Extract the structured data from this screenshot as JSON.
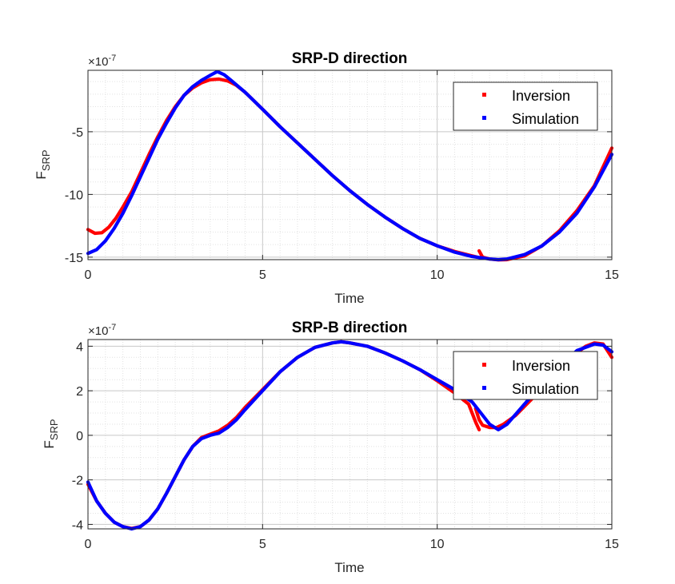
{
  "chart_data": [
    {
      "type": "line",
      "title": "SRP-D direction",
      "xlabel": "Time",
      "ylabel_main": "F",
      "ylabel_sub": "SRP",
      "exponent_base": "×10",
      "exponent_power": "-7",
      "xlim": [
        0,
        15
      ],
      "ylim": [
        -15.2,
        -0.1
      ],
      "xticks": [
        0,
        5,
        10,
        15
      ],
      "yticks": [
        -15,
        -10,
        -5
      ],
      "grid": "major and minor, dotted",
      "legend_position": "top-right",
      "series": [
        {
          "name": "Inversion",
          "color": "#ff0000",
          "segments": [
            [
              [
                0,
                -12.8
              ],
              [
                0.2,
                -13.1
              ],
              [
                0.4,
                -13.05
              ],
              [
                0.6,
                -12.6
              ],
              [
                0.8,
                -11.9
              ],
              [
                1,
                -11.0
              ],
              [
                1.25,
                -9.8
              ],
              [
                1.5,
                -8.3
              ],
              [
                1.75,
                -6.8
              ],
              [
                2,
                -5.4
              ],
              [
                2.25,
                -4.1
              ],
              [
                2.5,
                -3.0
              ],
              [
                2.75,
                -2.1
              ],
              [
                3,
                -1.5
              ],
              [
                3.25,
                -1.1
              ],
              [
                3.5,
                -0.85
              ],
              [
                3.75,
                -0.8
              ],
              [
                4,
                -0.95
              ],
              [
                4.25,
                -1.3
              ],
              [
                4.5,
                -1.85
              ],
              [
                5,
                -3.2
              ],
              [
                5.5,
                -4.6
              ],
              [
                6,
                -5.9
              ],
              [
                6.5,
                -7.2
              ],
              [
                7,
                -8.5
              ],
              [
                7.5,
                -9.7
              ],
              [
                8,
                -10.8
              ],
              [
                8.5,
                -11.8
              ],
              [
                9,
                -12.7
              ],
              [
                9.5,
                -13.5
              ],
              [
                10,
                -14.1
              ],
              [
                10.5,
                -14.55
              ],
              [
                11,
                -14.9
              ],
              [
                11.15,
                -15.0
              ]
            ],
            [
              [
                11.2,
                -14.5
              ],
              [
                11.3,
                -15.0
              ],
              [
                11.5,
                -15.15
              ],
              [
                11.75,
                -15.22
              ],
              [
                12,
                -15.2
              ],
              [
                12.5,
                -14.9
              ],
              [
                13,
                -14.1
              ],
              [
                13.5,
                -12.9
              ],
              [
                14,
                -11.3
              ],
              [
                14.5,
                -9.3
              ],
              [
                15,
                -6.3
              ]
            ]
          ]
        },
        {
          "name": "Simulation",
          "color": "#0000ff",
          "segments": [
            [
              [
                0,
                -14.7
              ],
              [
                0.25,
                -14.4
              ],
              [
                0.5,
                -13.7
              ],
              [
                0.75,
                -12.7
              ],
              [
                1,
                -11.5
              ],
              [
                1.25,
                -10.1
              ],
              [
                1.5,
                -8.6
              ],
              [
                1.75,
                -7.1
              ],
              [
                2,
                -5.6
              ],
              [
                2.25,
                -4.3
              ],
              [
                2.5,
                -3.1
              ],
              [
                2.75,
                -2.1
              ],
              [
                3,
                -1.4
              ],
              [
                3.25,
                -0.9
              ],
              [
                3.5,
                -0.5
              ],
              [
                3.7,
                -0.2
              ],
              [
                3.9,
                -0.45
              ],
              [
                4.1,
                -0.9
              ],
              [
                4.5,
                -1.85
              ],
              [
                5,
                -3.2
              ],
              [
                5.5,
                -4.6
              ],
              [
                6,
                -5.9
              ],
              [
                6.5,
                -7.2
              ],
              [
                7,
                -8.5
              ],
              [
                7.5,
                -9.7
              ],
              [
                8,
                -10.8
              ],
              [
                8.5,
                -11.8
              ],
              [
                9,
                -12.7
              ],
              [
                9.5,
                -13.5
              ],
              [
                10,
                -14.1
              ],
              [
                10.5,
                -14.6
              ],
              [
                11,
                -14.95
              ],
              [
                11.5,
                -15.15
              ],
              [
                11.75,
                -15.2
              ],
              [
                12,
                -15.15
              ],
              [
                12.5,
                -14.8
              ],
              [
                13,
                -14.1
              ],
              [
                13.5,
                -13.0
              ],
              [
                14,
                -11.5
              ],
              [
                14.5,
                -9.4
              ],
              [
                15,
                -6.8
              ]
            ]
          ]
        }
      ]
    },
    {
      "type": "line",
      "title": "SRP-B direction",
      "xlabel": "Time",
      "ylabel_main": "F",
      "ylabel_sub": "SRP",
      "exponent_base": "×10",
      "exponent_power": "-7",
      "xlim": [
        0,
        15
      ],
      "ylim": [
        -4.2,
        4.3
      ],
      "xticks": [
        0,
        5,
        10,
        15
      ],
      "yticks": [
        -4,
        -2,
        0,
        2,
        4
      ],
      "grid": "major and minor, dotted",
      "legend_position": "top-right",
      "series": [
        {
          "name": "Inversion",
          "color": "#ff0000",
          "segments": [
            [
              [
                0,
                -2.2
              ],
              [
                0.25,
                -2.95
              ],
              [
                0.5,
                -3.5
              ],
              [
                0.75,
                -3.9
              ],
              [
                1,
                -4.1
              ],
              [
                1.25,
                -4.18
              ],
              [
                1.5,
                -4.1
              ],
              [
                1.75,
                -3.8
              ],
              [
                2,
                -3.3
              ],
              [
                2.25,
                -2.6
              ],
              [
                2.5,
                -1.85
              ],
              [
                2.75,
                -1.1
              ],
              [
                3,
                -0.5
              ],
              [
                3.25,
                -0.1
              ],
              [
                3.5,
                0.05
              ],
              [
                3.75,
                0.2
              ],
              [
                4,
                0.45
              ],
              [
                4.25,
                0.8
              ],
              [
                4.5,
                1.25
              ],
              [
                5,
                2.05
              ],
              [
                5.5,
                2.85
              ],
              [
                6,
                3.5
              ],
              [
                6.5,
                3.95
              ],
              [
                7,
                4.15
              ],
              [
                7.25,
                4.2
              ],
              [
                7.5,
                4.15
              ],
              [
                8,
                4.0
              ],
              [
                8.5,
                3.7
              ],
              [
                9,
                3.35
              ],
              [
                9.5,
                2.95
              ],
              [
                10,
                2.45
              ],
              [
                10.5,
                1.9
              ],
              [
                10.9,
                1.4
              ],
              [
                11.1,
                0.6
              ],
              [
                11.2,
                0.25
              ]
            ],
            [
              [
                11.1,
                1.2
              ],
              [
                11.2,
                0.7
              ],
              [
                11.3,
                0.45
              ],
              [
                11.5,
                0.35
              ],
              [
                11.7,
                0.35
              ],
              [
                11.9,
                0.5
              ],
              [
                12.25,
                0.9
              ],
              [
                12.75,
                1.7
              ],
              [
                13.25,
                2.6
              ],
              [
                13.75,
                3.4
              ],
              [
                14.25,
                4.0
              ],
              [
                14.5,
                4.15
              ],
              [
                14.75,
                4.1
              ],
              [
                15,
                3.5
              ]
            ]
          ]
        },
        {
          "name": "Simulation",
          "color": "#0000ff",
          "segments": [
            [
              [
                0,
                -2.1
              ],
              [
                0.25,
                -2.95
              ],
              [
                0.5,
                -3.5
              ],
              [
                0.75,
                -3.9
              ],
              [
                1,
                -4.1
              ],
              [
                1.25,
                -4.2
              ],
              [
                1.5,
                -4.1
              ],
              [
                1.75,
                -3.8
              ],
              [
                2,
                -3.3
              ],
              [
                2.25,
                -2.6
              ],
              [
                2.5,
                -1.85
              ],
              [
                2.75,
                -1.1
              ],
              [
                3,
                -0.5
              ],
              [
                3.25,
                -0.15
              ],
              [
                3.5,
                0.0
              ],
              [
                3.75,
                0.1
              ],
              [
                4,
                0.35
              ],
              [
                4.25,
                0.7
              ],
              [
                4.5,
                1.15
              ],
              [
                5,
                2.0
              ],
              [
                5.5,
                2.85
              ],
              [
                6,
                3.5
              ],
              [
                6.5,
                3.95
              ],
              [
                7,
                4.15
              ],
              [
                7.25,
                4.2
              ],
              [
                7.5,
                4.15
              ],
              [
                8,
                4.0
              ],
              [
                8.5,
                3.7
              ],
              [
                9,
                3.35
              ],
              [
                9.5,
                2.95
              ],
              [
                10,
                2.5
              ],
              [
                10.5,
                2.05
              ],
              [
                11,
                1.5
              ],
              [
                11.25,
                1.0
              ],
              [
                11.5,
                0.5
              ],
              [
                11.75,
                0.25
              ],
              [
                12,
                0.5
              ],
              [
                12.5,
                1.4
              ],
              [
                13,
                2.3
              ],
              [
                13.5,
                3.1
              ],
              [
                14,
                3.8
              ],
              [
                14.5,
                4.1
              ],
              [
                14.75,
                4.05
              ],
              [
                15,
                3.75
              ]
            ]
          ]
        }
      ]
    }
  ]
}
